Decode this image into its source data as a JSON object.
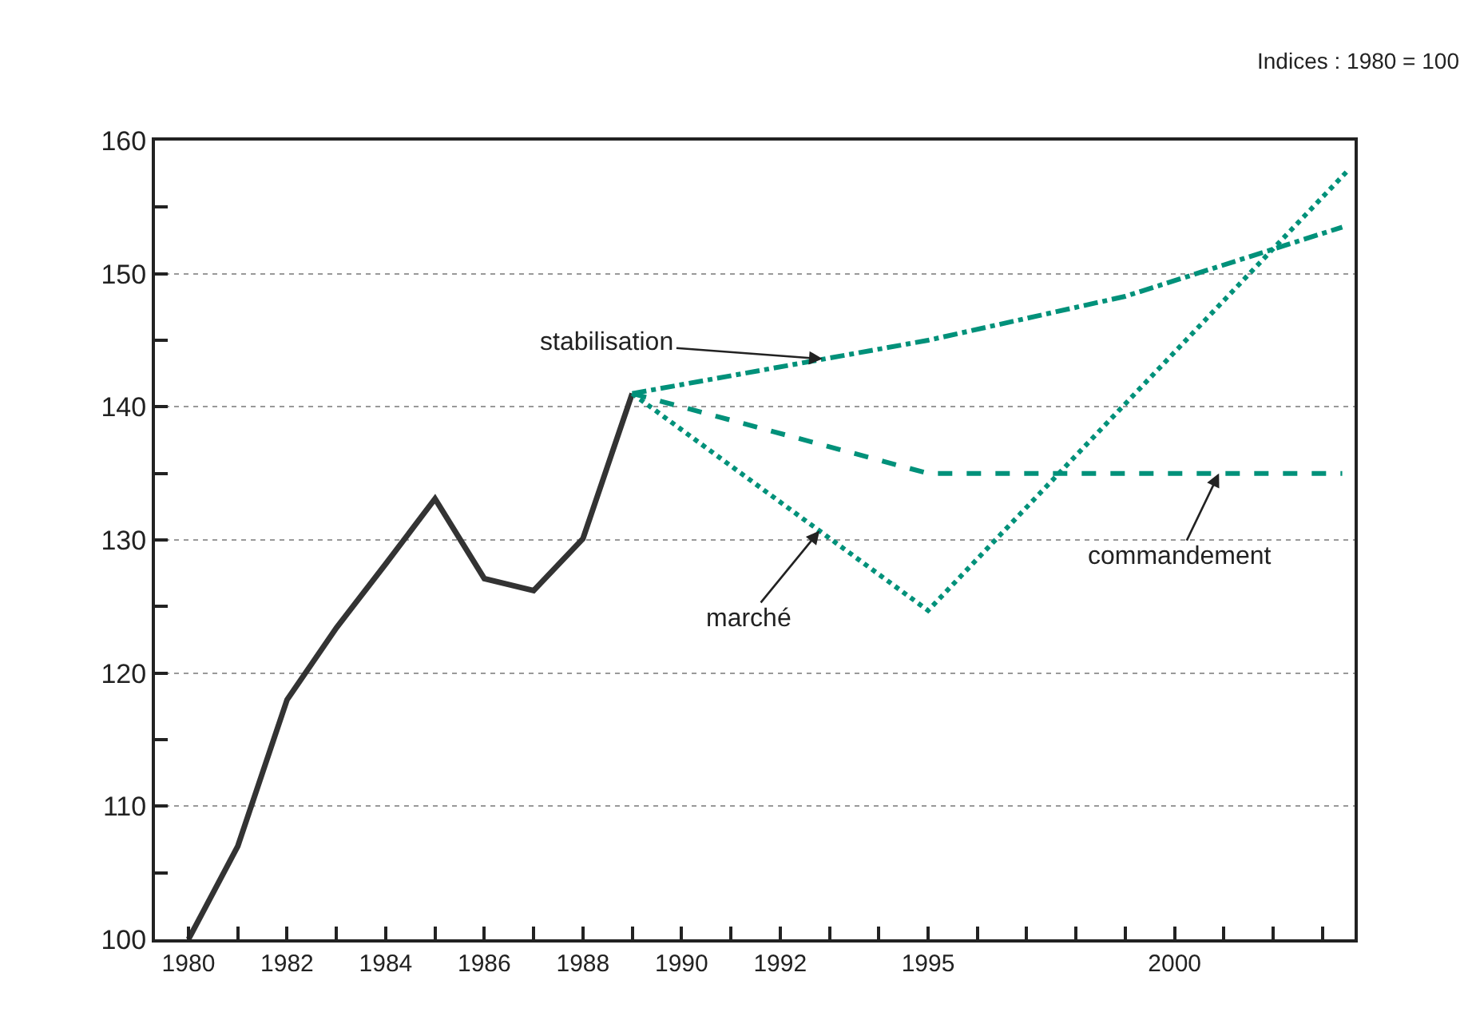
{
  "chart_data": {
    "type": "line",
    "annotations": [
      "Indices : 1980 = 100",
      {
        "text": "stabilisation",
        "x": 1992.86,
        "y": 143.6
      },
      {
        "text": "marché",
        "x": 1992.8,
        "y": 130.7
      },
      {
        "text": "commandement",
        "x": 2000.9,
        "y": 135
      }
    ],
    "series": [
      {
        "color": "#333333",
        "line_style": "solid",
        "x": [
          1980,
          1981,
          1982,
          1983,
          1984,
          1985,
          1986,
          1987,
          1988,
          1989
        ],
        "values": [
          100,
          107,
          118,
          123.4,
          128.2,
          133.1,
          127.1,
          126.2,
          130.1,
          141
        ]
      },
      {
        "color": "#00917a",
        "line_style": "dashdot",
        "x": [
          1989,
          1995,
          1999,
          2003.4
        ],
        "values": [
          141,
          145,
          148.3,
          153.5
        ]
      },
      {
        "color": "#00917a",
        "line_style": "dashed",
        "x": [
          1989,
          1995,
          2003.4
        ],
        "values": [
          141,
          135,
          135
        ]
      },
      {
        "color": "#00917a",
        "line_style": "dotted",
        "x": [
          1989,
          1995,
          2003.5
        ],
        "values": [
          141,
          124.7,
          157.7
        ]
      }
    ],
    "xlim": [
      1979.32,
      2003.65
    ],
    "xticks": [
      1980,
      {
        "value": 1981,
        "label": null
      },
      1982,
      {
        "value": 1983,
        "label": null
      },
      1984,
      {
        "value": 1985,
        "label": null
      },
      1986,
      {
        "value": 1987,
        "label": null
      },
      1988,
      {
        "value": 1989,
        "label": null
      },
      1990,
      {
        "value": 1991,
        "label": null
      },
      1992,
      {
        "value": 1993,
        "label": null
      },
      {
        "value": 1994,
        "label": null
      },
      1995,
      {
        "value": 1996,
        "label": null
      },
      {
        "value": 1997,
        "label": null
      },
      {
        "value": 1998,
        "label": null
      },
      {
        "value": 1999,
        "label": null
      },
      2000,
      {
        "value": 2001,
        "label": null
      },
      {
        "value": 2002,
        "label": null
      },
      {
        "value": 2003,
        "label": null
      }
    ],
    "ylim": [
      100,
      160
    ],
    "yticks": [
      100,
      {
        "value": 105,
        "label": null
      },
      110,
      {
        "value": 115,
        "label": null
      },
      120,
      {
        "value": 125,
        "label": null
      },
      130,
      {
        "value": 135,
        "label": null
      },
      140,
      {
        "value": 145,
        "label": null
      },
      150,
      {
        "value": 155,
        "label": null
      },
      160
    ],
    "grid": "y",
    "legend": false,
    "marker": "none"
  }
}
